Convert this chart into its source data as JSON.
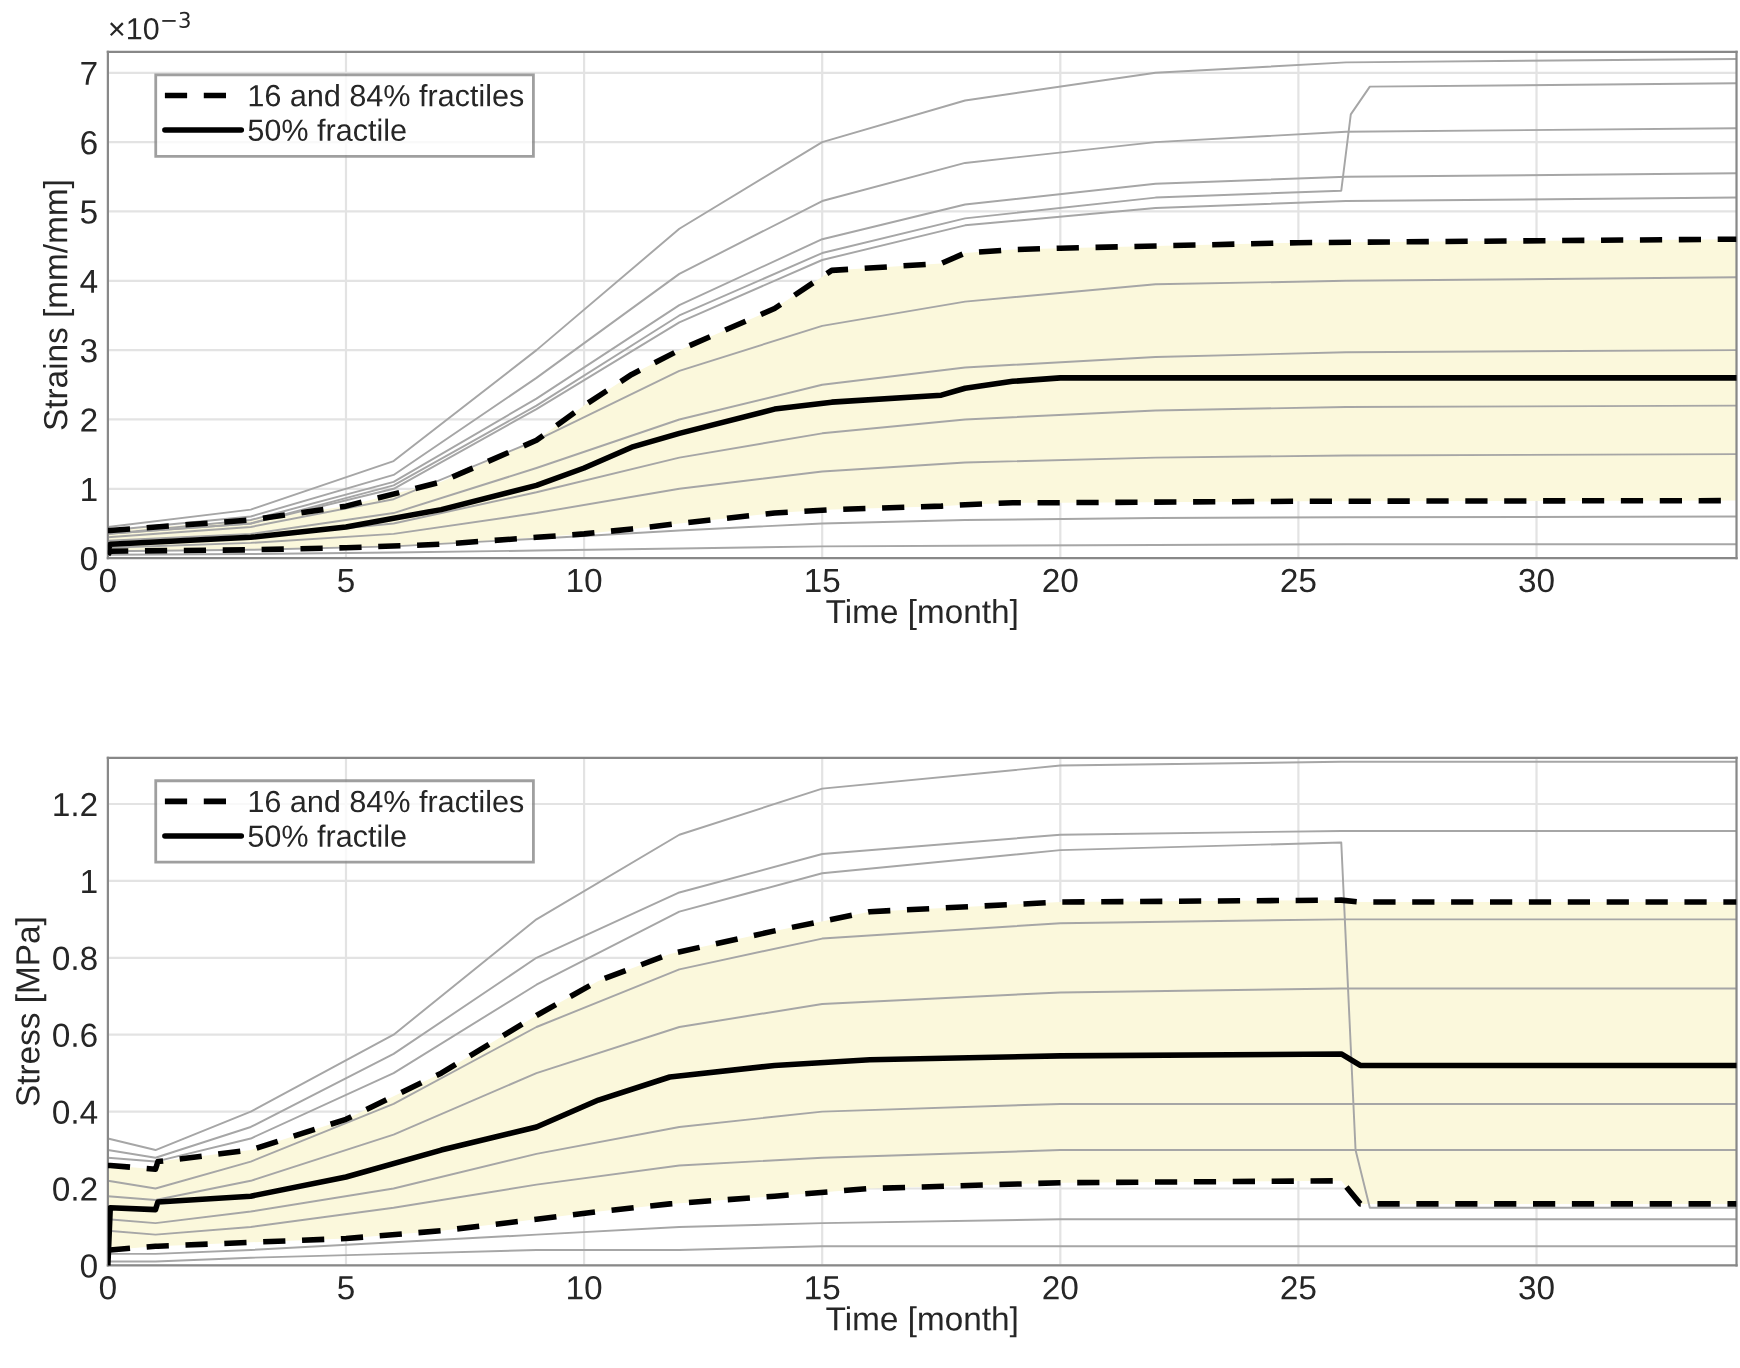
{
  "chart_data": [
    {
      "type": "line",
      "xlabel": "Time [month]",
      "ylabel": "Strains [mm/mm]",
      "annotations": [
        "×10$^{−3}$"
      ],
      "xlim": [
        0,
        34.2
      ],
      "ylim": [
        0,
        7.3
      ],
      "xticks": [
        0,
        5,
        10,
        15,
        20,
        25,
        30
      ],
      "yticks": [
        0,
        1,
        2,
        3,
        4,
        5,
        6,
        7
      ],
      "grid": true,
      "legend": "top left",
      "line_style": "solid",
      "marker": "none",
      "series": [
        {
          "color": "#a6a6a6",
          "x": [
            0,
            3,
            6,
            9,
            12,
            15,
            18,
            22,
            26,
            34.2
          ],
          "values": [
            0.45,
            0.7,
            1.4,
            3.0,
            4.75,
            6.0,
            6.6,
            7.0,
            7.15,
            7.2
          ]
        },
        {
          "color": "#a6a6a6",
          "x": [
            0,
            3,
            6,
            9,
            12,
            15,
            18,
            22,
            26,
            34.2
          ],
          "values": [
            0.4,
            0.6,
            1.2,
            2.6,
            4.1,
            5.15,
            5.7,
            6.0,
            6.15,
            6.2
          ]
        },
        {
          "color": "#a6a6a6",
          "x": [
            0,
            3,
            6,
            9,
            12,
            15,
            18,
            22,
            26,
            34.2
          ],
          "values": [
            0.35,
            0.55,
            1.1,
            2.3,
            3.65,
            4.6,
            5.1,
            5.4,
            5.5,
            5.55
          ]
        },
        {
          "color": "#a6a6a6",
          "x": [
            0,
            3,
            6,
            9,
            12,
            15,
            18,
            22,
            25.9,
            26.1,
            26.5,
            34.2
          ],
          "values": [
            0.35,
            0.5,
            1.05,
            2.2,
            3.5,
            4.4,
            4.9,
            5.2,
            5.3,
            6.4,
            6.8,
            6.85
          ]
        },
        {
          "color": "#a6a6a6",
          "x": [
            0,
            3,
            6,
            9,
            12,
            15,
            18,
            22,
            26,
            34.2
          ],
          "values": [
            0.35,
            0.5,
            1.0,
            2.15,
            3.4,
            4.3,
            4.8,
            5.05,
            5.15,
            5.2
          ]
        },
        {
          "color": "#a6a6a6",
          "x": [
            0,
            3,
            6,
            9,
            12,
            15,
            18,
            22,
            26,
            34.2
          ],
          "values": [
            0.3,
            0.45,
            0.85,
            1.7,
            2.7,
            3.35,
            3.7,
            3.95,
            4.0,
            4.05
          ]
        },
        {
          "color": "#a6a6a6",
          "x": [
            0,
            3,
            6,
            9,
            12,
            15,
            18,
            22,
            26,
            34.2
          ],
          "values": [
            0.25,
            0.35,
            0.65,
            1.3,
            2.0,
            2.5,
            2.75,
            2.9,
            2.97,
            3.0
          ]
        },
        {
          "color": "#a6a6a6",
          "x": [
            0,
            3,
            6,
            9,
            12,
            15,
            18,
            22,
            26,
            34.2
          ],
          "values": [
            0.2,
            0.3,
            0.5,
            0.95,
            1.45,
            1.8,
            2.0,
            2.13,
            2.18,
            2.2
          ]
        },
        {
          "color": "#a6a6a6",
          "x": [
            0,
            3,
            6,
            9,
            12,
            15,
            18,
            22,
            26,
            34.2
          ],
          "values": [
            0.15,
            0.22,
            0.35,
            0.65,
            1.0,
            1.25,
            1.38,
            1.45,
            1.48,
            1.5
          ]
        },
        {
          "color": "#a6a6a6",
          "x": [
            0,
            3,
            6,
            9,
            12,
            15,
            18,
            22,
            26,
            34.2
          ],
          "values": [
            0.1,
            0.12,
            0.17,
            0.28,
            0.4,
            0.5,
            0.55,
            0.58,
            0.59,
            0.6
          ]
        },
        {
          "color": "#a6a6a6",
          "x": [
            0,
            3,
            6,
            9,
            12,
            15,
            18,
            22,
            26,
            34.2
          ],
          "values": [
            0.05,
            0.06,
            0.08,
            0.11,
            0.14,
            0.17,
            0.18,
            0.19,
            0.2,
            0.2
          ]
        },
        {
          "name": "16 and 84% fractiles",
          "color": "#000000",
          "line_style": "dashed",
          "x": [
            0,
            0.05,
            3,
            5,
            7,
            9,
            10,
            11,
            12,
            14,
            15.2,
            17.5,
            18,
            19,
            20,
            25,
            34.2
          ],
          "values": [
            0.4,
            0.4,
            0.55,
            0.75,
            1.1,
            1.7,
            2.2,
            2.65,
            3.0,
            3.6,
            4.15,
            4.25,
            4.4,
            4.45,
            4.47,
            4.55,
            4.6
          ]
        },
        {
          "color": "#000000",
          "line_style": "dashed",
          "x": [
            0,
            0.05,
            3,
            5,
            7,
            9,
            10,
            11,
            12,
            14,
            15.2,
            17.5,
            18,
            19,
            20,
            25,
            34.2
          ],
          "values": [
            0.05,
            0.1,
            0.12,
            0.15,
            0.2,
            0.3,
            0.35,
            0.42,
            0.5,
            0.65,
            0.7,
            0.75,
            0.77,
            0.8,
            0.8,
            0.82,
            0.83
          ]
        },
        {
          "name": "50% fractile",
          "color": "#000000",
          "line_style": "solid",
          "x": [
            0,
            0.05,
            3,
            5,
            7,
            9,
            10,
            11,
            12,
            14,
            15.2,
            17.5,
            18,
            19,
            20,
            25,
            34.2
          ],
          "values": [
            0.1,
            0.2,
            0.3,
            0.45,
            0.7,
            1.05,
            1.3,
            1.6,
            1.8,
            2.15,
            2.25,
            2.35,
            2.45,
            2.55,
            2.6,
            2.6,
            2.6
          ],
          "lower": [
            0.05,
            0.1,
            0.12,
            0.15,
            0.2,
            0.3,
            0.35,
            0.42,
            0.5,
            0.65,
            0.7,
            0.75,
            0.77,
            0.8,
            0.8,
            0.82,
            0.83
          ],
          "upper": [
            0.4,
            0.4,
            0.55,
            0.75,
            1.1,
            1.7,
            2.2,
            2.65,
            3.0,
            3.6,
            4.15,
            4.25,
            4.4,
            4.45,
            4.47,
            4.55,
            4.6
          ]
        }
      ]
    },
    {
      "type": "line",
      "xlabel": "Time [month]",
      "ylabel": "Stress [MPa]",
      "xlim": [
        0,
        34.2
      ],
      "ylim": [
        0,
        1.32
      ],
      "xticks": [
        0,
        5,
        10,
        15,
        20,
        25,
        30
      ],
      "yticks": [
        0,
        0.2,
        0.4,
        0.6,
        0.8,
        1,
        1.2
      ],
      "grid": true,
      "legend": "top left",
      "line_style": "solid",
      "marker": "none",
      "series": [
        {
          "color": "#a6a6a6",
          "x": [
            0,
            1,
            3,
            6,
            9,
            12,
            15,
            20,
            25.9,
            34.2
          ],
          "values": [
            0.33,
            0.3,
            0.4,
            0.6,
            0.9,
            1.12,
            1.24,
            1.3,
            1.31,
            1.31
          ]
        },
        {
          "color": "#a6a6a6",
          "x": [
            0,
            1,
            3,
            6,
            9,
            12,
            15,
            20,
            25.9,
            34.2
          ],
          "values": [
            0.3,
            0.28,
            0.36,
            0.55,
            0.8,
            0.97,
            1.07,
            1.12,
            1.13,
            1.13
          ]
        },
        {
          "color": "#a6a6a6",
          "x": [
            0,
            1,
            3,
            6,
            9,
            12,
            15,
            20,
            25.9,
            26.2,
            26.5,
            34.2
          ],
          "values": [
            0.28,
            0.27,
            0.33,
            0.5,
            0.73,
            0.92,
            1.02,
            1.08,
            1.1,
            0.3,
            0.15,
            0.15
          ]
        },
        {
          "color": "#a6a6a6",
          "x": [
            0,
            1,
            3,
            6,
            9,
            12,
            15,
            20,
            25.9,
            34.2
          ],
          "values": [
            0.22,
            0.2,
            0.27,
            0.42,
            0.62,
            0.77,
            0.85,
            0.89,
            0.9,
            0.9
          ]
        },
        {
          "color": "#a6a6a6",
          "x": [
            0,
            1,
            3,
            6,
            9,
            12,
            15,
            20,
            25.9,
            34.2
          ],
          "values": [
            0.18,
            0.17,
            0.22,
            0.34,
            0.5,
            0.62,
            0.68,
            0.71,
            0.72,
            0.72
          ]
        },
        {
          "color": "#a6a6a6",
          "x": [
            0,
            1,
            3,
            6,
            9,
            12,
            15,
            20,
            25.9,
            34.2
          ],
          "values": [
            0.12,
            0.11,
            0.14,
            0.2,
            0.29,
            0.36,
            0.4,
            0.42,
            0.42,
            0.42
          ]
        },
        {
          "color": "#a6a6a6",
          "x": [
            0,
            1,
            3,
            6,
            9,
            12,
            15,
            20,
            25.9,
            34.2
          ],
          "values": [
            0.09,
            0.08,
            0.1,
            0.15,
            0.21,
            0.26,
            0.28,
            0.3,
            0.3,
            0.3
          ]
        },
        {
          "color": "#a6a6a6",
          "x": [
            0,
            1,
            3,
            6,
            9,
            12,
            15,
            20,
            25.9,
            34.2
          ],
          "values": [
            0.03,
            0.03,
            0.04,
            0.06,
            0.08,
            0.1,
            0.11,
            0.12,
            0.12,
            0.12
          ]
        },
        {
          "color": "#a6a6a6",
          "x": [
            0,
            1,
            3,
            6,
            9,
            12,
            15,
            20,
            25.9,
            34.2
          ],
          "values": [
            0.01,
            0.01,
            0.02,
            0.03,
            0.04,
            0.04,
            0.05,
            0.05,
            0.05,
            0.05
          ]
        },
        {
          "name": "16 and 84% fractiles",
          "color": "#000000",
          "line_style": "dashed",
          "x": [
            0,
            0.05,
            1,
            1.05,
            3,
            5,
            7,
            9,
            10.3,
            11.8,
            14,
            16,
            20,
            25.9,
            26.3,
            34.2
          ],
          "values": [
            0.26,
            0.26,
            0.25,
            0.27,
            0.3,
            0.38,
            0.5,
            0.65,
            0.74,
            0.81,
            0.87,
            0.92,
            0.945,
            0.95,
            0.945,
            0.945
          ]
        },
        {
          "color": "#000000",
          "line_style": "dashed",
          "x": [
            0,
            0.05,
            1,
            1.05,
            3,
            5,
            7,
            9,
            10.3,
            11.8,
            14,
            16,
            20,
            25.9,
            26.3,
            34.2
          ],
          "values": [
            0.04,
            0.04,
            0.05,
            0.05,
            0.06,
            0.07,
            0.09,
            0.12,
            0.14,
            0.16,
            0.18,
            0.2,
            0.215,
            0.22,
            0.16,
            0.16
          ]
        },
        {
          "name": "50% fractile",
          "color": "#000000",
          "line_style": "solid",
          "x": [
            0,
            0.05,
            1,
            1.05,
            3,
            5,
            7,
            9,
            10.3,
            11.8,
            14,
            16,
            20,
            25.9,
            26.3,
            34.2
          ],
          "values": [
            0,
            0.15,
            0.145,
            0.165,
            0.18,
            0.23,
            0.3,
            0.36,
            0.43,
            0.49,
            0.52,
            0.535,
            0.545,
            0.55,
            0.52,
            0.52
          ],
          "lower": [
            0.04,
            0.04,
            0.05,
            0.05,
            0.06,
            0.07,
            0.09,
            0.12,
            0.14,
            0.16,
            0.18,
            0.2,
            0.215,
            0.22,
            0.16,
            0.16
          ],
          "upper": [
            0.26,
            0.26,
            0.25,
            0.27,
            0.3,
            0.38,
            0.5,
            0.65,
            0.74,
            0.81,
            0.87,
            0.92,
            0.945,
            0.95,
            0.945,
            0.945
          ]
        }
      ]
    }
  ]
}
